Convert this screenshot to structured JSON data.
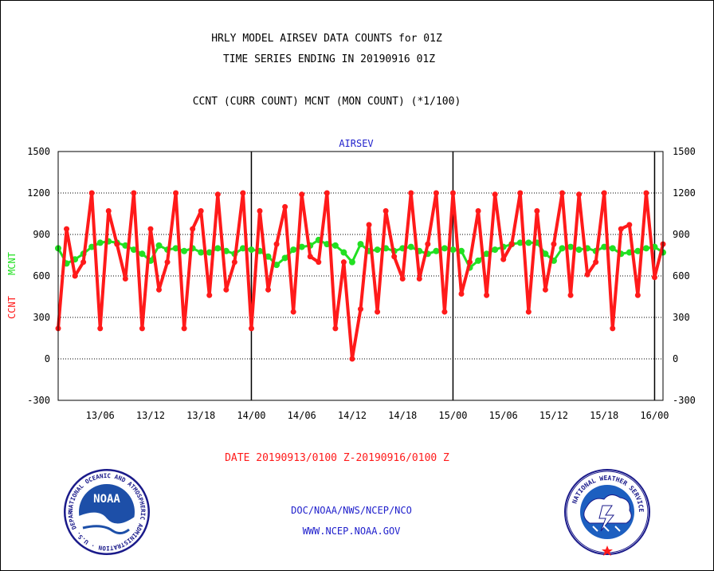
{
  "header": {
    "title_line1": "HRLY MODEL AIRSEV DATA COUNTS for 01Z",
    "title_line2": "TIME SERIES ENDING IN 20190916 01Z",
    "subtitle": "CCNT (CURR COUNT) MCNT (MON COUNT) (*1/100)"
  },
  "footer": {
    "date_range": "DATE 20190913/0100 Z-20190916/0100 Z",
    "agency": "DOC/NOAA/NWS/NCEP/NCO",
    "url": "WWW.NCEP.NOAA.GOV"
  },
  "logos": {
    "left": {
      "name": "NOAA",
      "text": "NOAA",
      "ring_text": "NATIONAL OCEANIC AND ATMOSPHERIC ADMINISTRATION · U.S. DEPARTMENT OF COMMERCE ·"
    },
    "right": {
      "name": "National Weather Service",
      "ring_text": "NATIONAL WEATHER SERVICE"
    }
  },
  "colors": {
    "ccnt": "#ff1a1a",
    "mcnt": "#22e022",
    "title": "#000000",
    "footer_blue": "#2020cc",
    "date_red": "#ff1a1a"
  },
  "chart_data": {
    "type": "line",
    "title": "AIRSEV",
    "ylabel_ccnt": "CCNT",
    "ylabel_mcnt": "MCNT",
    "ylim": [
      -300,
      1500
    ],
    "yticks": [
      -300,
      0,
      300,
      600,
      900,
      1200,
      1500
    ],
    "xlim": [
      0,
      72
    ],
    "xticks": [
      {
        "x": 5,
        "label": "13/06"
      },
      {
        "x": 11,
        "label": "13/12"
      },
      {
        "x": 17,
        "label": "13/18"
      },
      {
        "x": 23,
        "label": "14/00"
      },
      {
        "x": 29,
        "label": "14/06"
      },
      {
        "x": 35,
        "label": "14/12"
      },
      {
        "x": 41,
        "label": "14/18"
      },
      {
        "x": 47,
        "label": "15/00"
      },
      {
        "x": 53,
        "label": "15/06"
      },
      {
        "x": 59,
        "label": "15/12"
      },
      {
        "x": 65,
        "label": "15/18"
      },
      {
        "x": 71,
        "label": "16/00"
      }
    ],
    "day_boundaries": [
      23,
      47,
      71
    ],
    "grid": "horizontal dotted",
    "series": [
      {
        "name": "CCNT",
        "values": [
          220,
          940,
          600,
          700,
          1200,
          220,
          1070,
          830,
          580,
          1200,
          220,
          940,
          500,
          700,
          1200,
          220,
          940,
          1070,
          460,
          1190,
          500,
          700,
          1200,
          220,
          1070,
          500,
          830,
          1100,
          340,
          1190,
          740,
          700,
          1200,
          220,
          700,
          0,
          360,
          970,
          340,
          1070,
          740,
          580,
          1200,
          580,
          830,
          1200,
          340,
          1200,
          470,
          700,
          1070,
          460,
          1190,
          720,
          830,
          1200,
          340,
          1070,
          500,
          830,
          1200,
          460,
          1190,
          610,
          700,
          1200,
          220,
          940,
          970,
          460,
          1200,
          590,
          830
        ]
      },
      {
        "name": "MCNT",
        "values": [
          800,
          690,
          720,
          760,
          810,
          840,
          850,
          840,
          820,
          790,
          760,
          710,
          820,
          790,
          800,
          780,
          800,
          770,
          770,
          800,
          780,
          760,
          800,
          790,
          780,
          740,
          680,
          730,
          790,
          810,
          820,
          860,
          830,
          820,
          770,
          700,
          830,
          780,
          790,
          800,
          780,
          800,
          810,
          780,
          760,
          780,
          800,
          790,
          780,
          660,
          710,
          760,
          790,
          810,
          830,
          840,
          840,
          840,
          760,
          710,
          800,
          810,
          790,
          800,
          780,
          810,
          800,
          760,
          770,
          780,
          800,
          810,
          770
        ]
      }
    ]
  }
}
